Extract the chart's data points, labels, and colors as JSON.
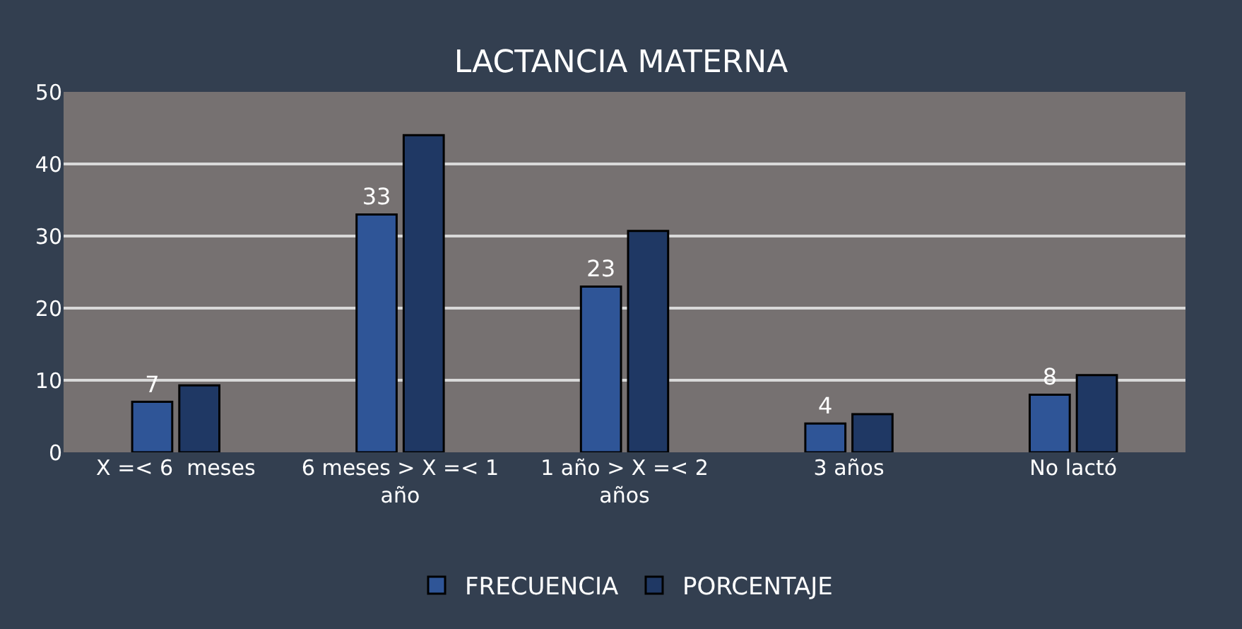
{
  "chart_data": {
    "type": "bar",
    "title": "LACTANCIA MATERNA",
    "categories": [
      "X =< 6  meses",
      "6 meses > X =< 1 año",
      "1 año > X =< 2 años",
      "3 años",
      "No lactó"
    ],
    "series": [
      {
        "name": "FRECUENCIA",
        "color": "#2f5597",
        "values": [
          7,
          33,
          23,
          4,
          8
        ],
        "value_labels": [
          "7",
          "33",
          "23",
          "4",
          "8"
        ]
      },
      {
        "name": "PORCENTAJE",
        "color": "#1f3864",
        "values": [
          9.3,
          44,
          30.7,
          5.3,
          10.7
        ]
      }
    ],
    "ylim": [
      0,
      50
    ],
    "yticks": [
      0,
      10,
      20,
      30,
      40,
      50
    ],
    "grid": "y",
    "legend": "bottom"
  }
}
